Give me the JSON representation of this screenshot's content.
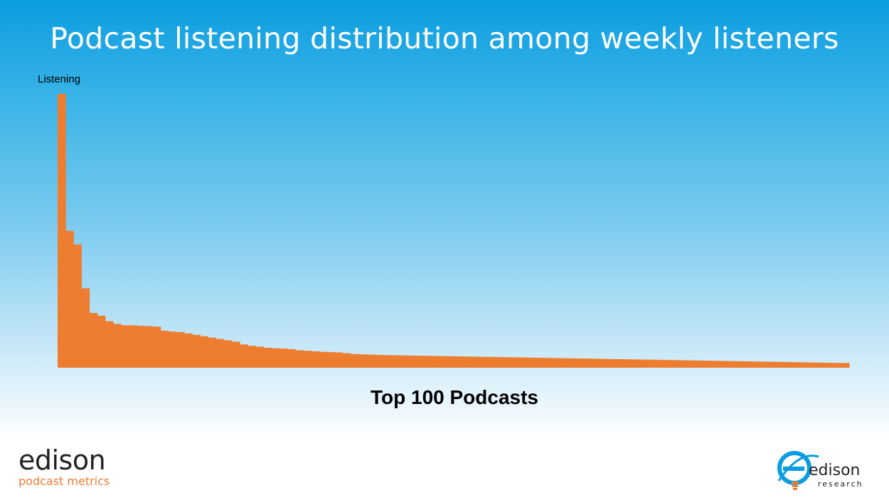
{
  "title": "Podcast listening distribution among weekly listeners",
  "logos": {
    "left_brand": "edison",
    "left_sub": "podcast metrics",
    "right_brand": "edison",
    "right_sub": "research"
  },
  "colors": {
    "bar": "#ed7d31",
    "background_top": "#0b9de0",
    "background_bottom": "#ffffff"
  },
  "chart_data": {
    "type": "bar",
    "xlabel": "Top 100 Podcasts",
    "ylabel": "Listening",
    "ylim": [
      0,
      100
    ],
    "categories_count": 100,
    "values": [
      100,
      50,
      45,
      29,
      20,
      19,
      17,
      16,
      15.5,
      15.5,
      15.3,
      15.2,
      15,
      13.5,
      13.2,
      13,
      12.5,
      12,
      11.5,
      11,
      10.5,
      10,
      9.5,
      8.5,
      8,
      7.7,
      7.3,
      7.1,
      7,
      6.8,
      6.4,
      6.2,
      6,
      5.8,
      5.7,
      5.6,
      5.3,
      5.0,
      4.9,
      4.8,
      4.7,
      4.6,
      4.55,
      4.5,
      4.45,
      4.4,
      4.35,
      4.3,
      4.25,
      4.2,
      4.15,
      4.1,
      4.05,
      4.0,
      3.95,
      3.9,
      3.85,
      3.8,
      3.75,
      3.7,
      3.65,
      3.6,
      3.55,
      3.5,
      3.45,
      3.4,
      3.35,
      3.3,
      3.25,
      3.2,
      3.15,
      3.1,
      3.05,
      3.0,
      2.95,
      2.9,
      2.85,
      2.8,
      2.75,
      2.7,
      2.65,
      2.6,
      2.55,
      2.5,
      2.45,
      2.4,
      2.35,
      2.3,
      2.25,
      2.2,
      2.15,
      2.1,
      2.05,
      2.0,
      1.95,
      1.9,
      1.85,
      1.8,
      1.75,
      1.7
    ]
  }
}
